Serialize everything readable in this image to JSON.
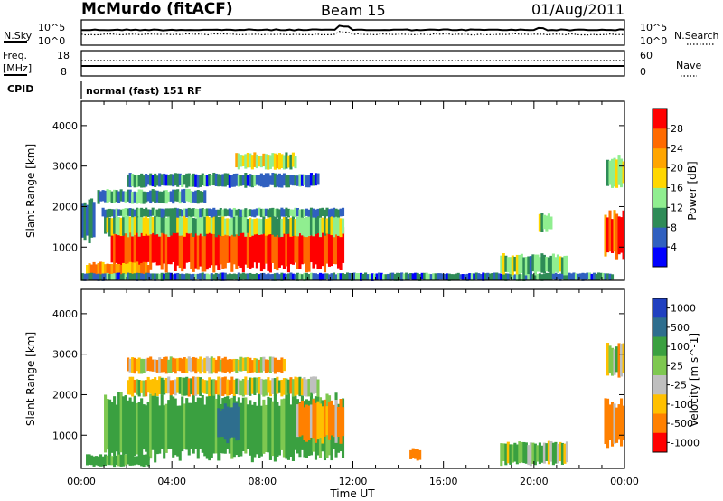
{
  "header": {
    "station": "McMurdo (fitACF)",
    "beam": "Beam 15",
    "date": "01/Aug/2011"
  },
  "noise_panel": {
    "left_label": "N.Sky",
    "left_ticks": [
      "10^5",
      "10^0"
    ],
    "right_label": "N.Search",
    "right_ticks": [
      "10^5",
      "10^0"
    ]
  },
  "freq_panel": {
    "left_label_lines": [
      "Freq.",
      "[MHz]"
    ],
    "left_ticks": [
      "18",
      "8"
    ],
    "right_label": "Nave",
    "right_ticks": [
      "60",
      "0"
    ]
  },
  "cpid": {
    "label": "CPID",
    "text": "normal (fast) 151 RF"
  },
  "colors": {
    "axis": "#000000",
    "power_scale": [
      "#0000ff",
      "#3060c0",
      "#2e8b57",
      "#90ee90",
      "#ffd700",
      "#ffa500",
      "#ff6a00",
      "#ff0000"
    ],
    "velocity_scale": [
      "#ff0000",
      "#ff8000",
      "#ffc000",
      "#bfbfbf",
      "#7ec850",
      "#3aa040",
      "#2e6e8e",
      "#2040c0"
    ]
  },
  "chart_data": [
    {
      "type": "heatmap",
      "name": "power",
      "ylabel": "Slant Range [km]",
      "xlabel": "",
      "ylim": [
        180,
        4600
      ],
      "xlim": [
        0,
        24
      ],
      "yticks": [
        "1000",
        "2000",
        "3000",
        "4000"
      ],
      "colorbar_label": "Power [dB]",
      "colorbar_ticks": [
        "4",
        "8",
        "12",
        "16",
        "20",
        "24",
        "28"
      ],
      "colorbar_range": [
        0,
        32
      ],
      "regions": [
        {
          "t0": 1.3,
          "t1": 11.6,
          "r0": 500,
          "r1": 1550,
          "level": 29
        },
        {
          "t0": 1.0,
          "t1": 11.6,
          "r0": 1300,
          "r1": 1750,
          "level": 14
        },
        {
          "t0": 0.9,
          "t1": 11.6,
          "r0": 1750,
          "r1": 1950,
          "level": 9
        },
        {
          "t0": 0.7,
          "t1": 5.5,
          "r0": 2100,
          "r1": 2400,
          "level": 10
        },
        {
          "t0": 2.0,
          "t1": 10.5,
          "r0": 2500,
          "r1": 2800,
          "level": 8
        },
        {
          "t0": 6.8,
          "t1": 9.5,
          "r0": 2950,
          "r1": 3300,
          "level": 16
        },
        {
          "t0": 0.2,
          "t1": 3.0,
          "r0": 250,
          "r1": 600,
          "level": 22
        },
        {
          "t0": 0.0,
          "t1": 23.5,
          "r0": 180,
          "r1": 350,
          "level": 8
        },
        {
          "t0": 18.5,
          "t1": 21.5,
          "r0": 350,
          "r1": 800,
          "level": 12
        },
        {
          "t0": 20.2,
          "t1": 20.8,
          "r0": 1400,
          "r1": 1800,
          "level": 12
        },
        {
          "t0": 23.1,
          "t1": 24.0,
          "r0": 800,
          "r1": 1800,
          "level": 27
        },
        {
          "t0": 23.2,
          "t1": 24.0,
          "r0": 2500,
          "r1": 3200,
          "level": 14
        },
        {
          "t0": 0.0,
          "t1": 0.6,
          "r0": 1200,
          "r1": 2100,
          "level": 8
        }
      ]
    },
    {
      "type": "heatmap",
      "name": "velocity",
      "ylabel": "Slant Range [km]",
      "xlabel": "Time UT",
      "ylim": [
        180,
        4600
      ],
      "xlim": [
        0,
        24
      ],
      "yticks": [
        "1000",
        "2000",
        "3000",
        "4000"
      ],
      "xticks": [
        "00:00",
        "04:00",
        "08:00",
        "12:00",
        "16:00",
        "20:00",
        "00:00"
      ],
      "colorbar_label": "Velocity [m s^-1]",
      "colorbar_ticks": [
        "1000",
        "500",
        "100",
        "25",
        "-25",
        "-100",
        "-500",
        "-1000"
      ],
      "regions": [
        {
          "t0": 1.0,
          "t1": 11.6,
          "r0": 500,
          "r1": 1900,
          "value": 200
        },
        {
          "t0": 6.0,
          "t1": 7.0,
          "r0": 900,
          "r1": 1700,
          "value": 700
        },
        {
          "t0": 9.5,
          "t1": 11.6,
          "r0": 900,
          "r1": 1800,
          "value": -150
        },
        {
          "t0": 2.0,
          "t1": 10.5,
          "r0": 2000,
          "r1": 2400,
          "value": 0
        },
        {
          "t0": 2.0,
          "t1": 9.0,
          "r0": 2550,
          "r1": 2900,
          "value": -60
        },
        {
          "t0": 0.2,
          "t1": 3.0,
          "r0": 250,
          "r1": 500,
          "value": 200
        },
        {
          "t0": 18.5,
          "t1": 21.5,
          "r0": 300,
          "r1": 800,
          "value": 80
        },
        {
          "t0": 23.1,
          "t1": 24.0,
          "r0": 800,
          "r1": 1800,
          "value": -150
        },
        {
          "t0": 23.2,
          "t1": 24.0,
          "r0": 2500,
          "r1": 3200,
          "value": 0
        },
        {
          "t0": 14.5,
          "t1": 15.0,
          "r0": 400,
          "r1": 650,
          "value": -150
        }
      ]
    }
  ]
}
